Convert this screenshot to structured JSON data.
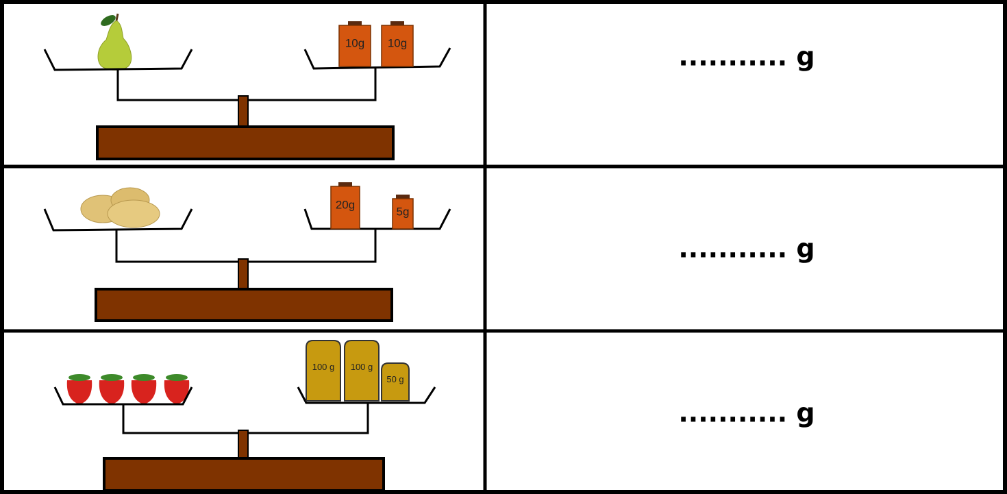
{
  "rows": [
    {
      "weights": [
        "10g",
        "10g"
      ],
      "answer": "........... g"
    },
    {
      "weights": [
        "20g",
        "5g"
      ],
      "answer": "........... g"
    },
    {
      "weights": [
        "100 g",
        "100 g",
        "50 g"
      ],
      "answer": "........... g"
    }
  ]
}
